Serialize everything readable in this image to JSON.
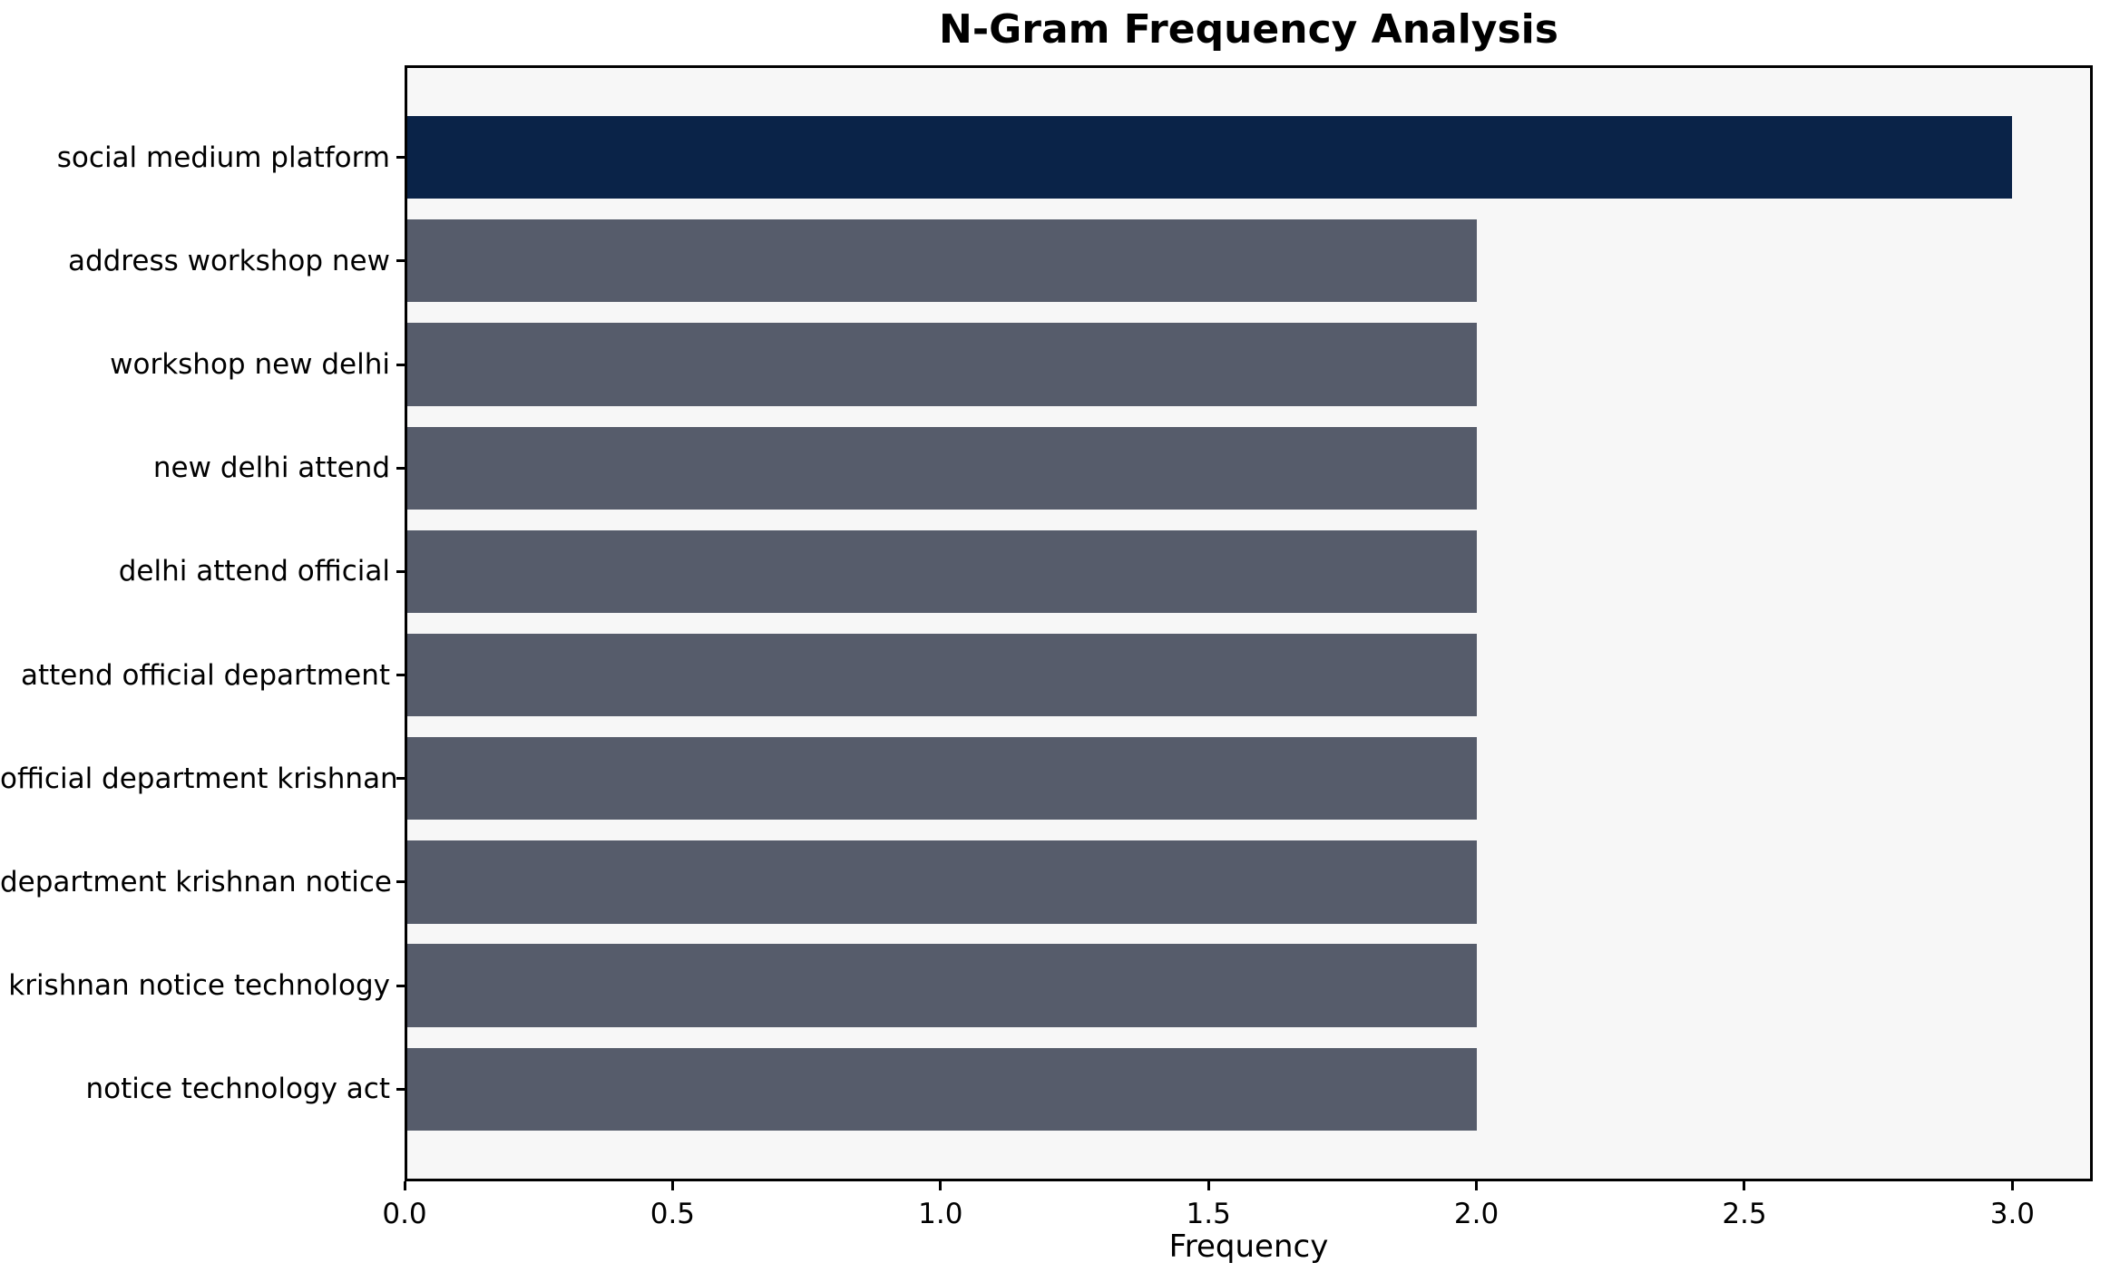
{
  "figure": {
    "background": "#ffffff",
    "plot_background": "#f7f7f7",
    "spine_color": "#000000"
  },
  "chart_data": {
    "type": "bar",
    "orientation": "horizontal",
    "title": "N-Gram Frequency Analysis",
    "xlabel": "Frequency",
    "ylabel": "",
    "categories": [
      "social medium platform",
      "address workshop new",
      "workshop new delhi",
      "new delhi attend",
      "delhi attend official",
      "attend official department",
      "official department krishnan",
      "department krishnan notice",
      "krishnan notice technology",
      "notice technology act"
    ],
    "values": [
      3,
      2,
      2,
      2,
      2,
      2,
      2,
      2,
      2,
      2
    ],
    "bar_colors": [
      "#0a2348",
      "#565c6b",
      "#565c6b",
      "#565c6b",
      "#565c6b",
      "#565c6b",
      "#565c6b",
      "#565c6b",
      "#565c6b",
      "#565c6b"
    ],
    "highlight_color": "#0a2348",
    "default_bar_color": "#565c6b",
    "xlim": [
      0,
      3.15
    ],
    "x_ticks": [
      0.0,
      0.5,
      1.0,
      1.5,
      2.0,
      2.5,
      3.0
    ],
    "x_tick_labels": [
      "0.0",
      "0.5",
      "1.0",
      "1.5",
      "2.0",
      "2.5",
      "3.0"
    ],
    "grid": false,
    "legend": null
  }
}
